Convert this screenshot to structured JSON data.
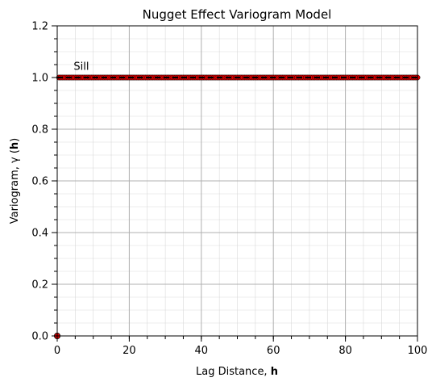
{
  "chart_data": {
    "type": "line",
    "title": "Nugget Effect Variogram Model",
    "xlabel": "Lag Distance,",
    "xlabel_bold": "h",
    "ylabel": "Variogram, γ (",
    "ylabel_bold": "h",
    "ylabel_end": ")",
    "xlim": [
      0,
      100
    ],
    "ylim": [
      0,
      1.2
    ],
    "xticks": [
      0,
      20,
      40,
      60,
      80,
      100
    ],
    "xtick_labels": [
      "0",
      "20",
      "40",
      "60",
      "80",
      "100"
    ],
    "yticks": [
      0.0,
      0.2,
      0.4,
      0.6,
      0.8,
      1.0,
      1.2
    ],
    "ytick_labels": [
      "0.0",
      "0.2",
      "0.4",
      "0.6",
      "0.8",
      "1.0",
      "1.2"
    ],
    "x_minor_step": 5,
    "y_minor_step": 0.05,
    "grid": true,
    "series": [
      {
        "style": "markers",
        "marker_color": "#e00000",
        "edge_color": "#000000",
        "x": [
          0,
          0.5,
          1,
          1.5,
          2,
          2.5,
          3,
          3.5,
          4,
          4.5,
          5,
          5.5,
          6,
          6.5,
          7,
          7.5,
          8,
          8.5,
          9,
          9.5,
          10,
          10.5,
          11,
          11.5,
          12,
          12.5,
          13,
          13.5,
          14,
          14.5,
          15,
          15.5,
          16,
          16.5,
          17,
          17.5,
          18,
          18.5,
          19,
          19.5,
          20,
          20.5,
          21,
          21.5,
          22,
          22.5,
          23,
          23.5,
          24,
          24.5,
          25,
          25.5,
          26,
          26.5,
          27,
          27.5,
          28,
          28.5,
          29,
          29.5,
          30,
          30.5,
          31,
          31.5,
          32,
          32.5,
          33,
          33.5,
          34,
          34.5,
          35,
          35.5,
          36,
          36.5,
          37,
          37.5,
          38,
          38.5,
          39,
          39.5,
          40,
          40.5,
          41,
          41.5,
          42,
          42.5,
          43,
          43.5,
          44,
          44.5,
          45,
          45.5,
          46,
          46.5,
          47,
          47.5,
          48,
          48.5,
          49,
          49.5,
          50,
          50.5,
          51,
          51.5,
          52,
          52.5,
          53,
          53.5,
          54,
          54.5,
          55,
          55.5,
          56,
          56.5,
          57,
          57.5,
          58,
          58.5,
          59,
          59.5,
          60,
          60.5,
          61,
          61.5,
          62,
          62.5,
          63,
          63.5,
          64,
          64.5,
          65,
          65.5,
          66,
          66.5,
          67,
          67.5,
          68,
          68.5,
          69,
          69.5,
          70,
          70.5,
          71,
          71.5,
          72,
          72.5,
          73,
          73.5,
          74,
          74.5,
          75,
          75.5,
          76,
          76.5,
          77,
          77.5,
          78,
          78.5,
          79,
          79.5,
          80,
          80.5,
          81,
          81.5,
          82,
          82.5,
          83,
          83.5,
          84,
          84.5,
          85,
          85.5,
          86,
          86.5,
          87,
          87.5,
          88,
          88.5,
          89,
          89.5,
          90,
          90.5,
          91,
          91.5,
          92,
          92.5,
          93,
          93.5,
          94,
          94.5,
          95,
          95.5,
          96,
          96.5,
          97,
          97.5,
          98,
          98.5,
          99,
          99.5,
          100
        ],
        "nugget_point": [
          0,
          0
        ],
        "sill_value": 1.0
      }
    ],
    "sill_line": {
      "y": 1.0,
      "style": "dashed",
      "color": "#000000"
    },
    "annotations": [
      {
        "text": "Sill",
        "x": 5,
        "y": 1.02
      }
    ]
  }
}
